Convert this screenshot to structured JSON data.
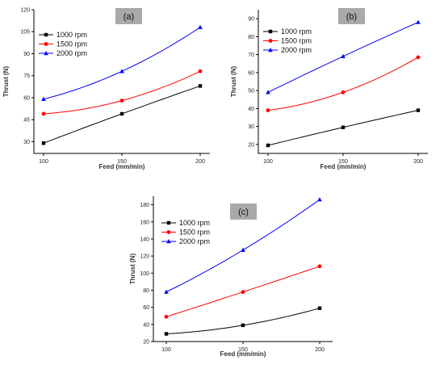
{
  "chart_data": [
    {
      "type": "line",
      "panel_label": "(a)",
      "x": [
        100,
        150,
        200
      ],
      "xlabel": "Feed (mm/min)",
      "ylabel": "Thrust (N)",
      "xticks": [
        "100",
        "150",
        "200"
      ],
      "yticks": [
        "30",
        "45",
        "60",
        "75",
        "90",
        "105",
        "120"
      ],
      "ylim": [
        22,
        120
      ],
      "grid": false,
      "legend_position": "top-left",
      "series": [
        {
          "name": "1000 rpm",
          "color": "#000000",
          "marker": "square",
          "values": [
            29,
            49,
            68
          ]
        },
        {
          "name": "1500 rpm",
          "color": "#ff0000",
          "marker": "circle",
          "values": [
            49,
            58,
            78
          ]
        },
        {
          "name": "2000 rpm",
          "color": "#0000ff",
          "marker": "triangle",
          "values": [
            59,
            78,
            108
          ]
        }
      ]
    },
    {
      "type": "line",
      "panel_label": "(b)",
      "x": [
        100,
        150,
        200
      ],
      "xlabel": "Feed (mm/min)",
      "ylabel": "Thrust (N)",
      "xticks": [
        "100",
        "150",
        "200"
      ],
      "yticks": [
        "20",
        "30",
        "40",
        "50",
        "60",
        "70",
        "80",
        "90"
      ],
      "ylim": [
        15,
        95
      ],
      "grid": false,
      "legend_position": "top-left",
      "series": [
        {
          "name": "1000 rpm",
          "color": "#000000",
          "marker": "square",
          "values": [
            19.5,
            29.5,
            39
          ]
        },
        {
          "name": "1500 rpm",
          "color": "#ff0000",
          "marker": "circle",
          "values": [
            39,
            49,
            68.5
          ]
        },
        {
          "name": "2000 rpm",
          "color": "#0000ff",
          "marker": "triangle",
          "values": [
            49,
            69,
            88
          ]
        }
      ]
    },
    {
      "type": "line",
      "panel_label": "(c)",
      "x": [
        100,
        150,
        200
      ],
      "xlabel": "Feed (mm/min)",
      "ylabel": "Thrust (N)",
      "xticks": [
        "100",
        "150",
        "200"
      ],
      "yticks": [
        "20",
        "40",
        "60",
        "80",
        "100",
        "120",
        "140",
        "160",
        "180"
      ],
      "ylim": [
        20,
        190
      ],
      "grid": false,
      "legend_position": "top-left",
      "series": [
        {
          "name": "1000 rpm",
          "color": "#000000",
          "marker": "square",
          "values": [
            29,
            39,
            59
          ]
        },
        {
          "name": "1500 rpm",
          "color": "#ff0000",
          "marker": "circle",
          "values": [
            49,
            78,
            108
          ]
        },
        {
          "name": "2000 rpm",
          "color": "#0000ff",
          "marker": "triangle",
          "values": [
            78,
            127,
            186
          ]
        }
      ]
    }
  ]
}
